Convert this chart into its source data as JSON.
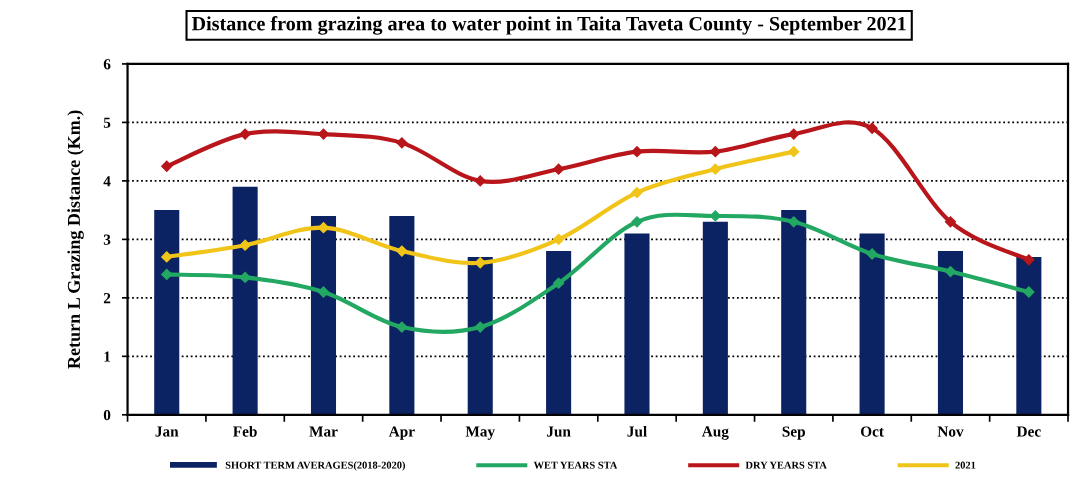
{
  "chart_data": {
    "type": "bar",
    "title": "Distance from grazing area to water point in Taita Taveta County - September 2021",
    "ylabel": "Return L Grazing Distance (Km.)",
    "categories": [
      "Jan",
      "Feb",
      "Mar",
      "Apr",
      "May",
      "Jun",
      "Jul",
      "Aug",
      "Sep",
      "Oct",
      "Nov",
      "Dec"
    ],
    "series": [
      {
        "name": "SHORT TERM AVERAGES(2018-2020)",
        "color": "#0b2263",
        "values": [
          3.5,
          3.9,
          3.4,
          3.4,
          2.7,
          2.8,
          3.1,
          3.3,
          3.5,
          3.1,
          2.8,
          2.7
        ]
      },
      {
        "name": "WET YEARS STA",
        "type": "line",
        "color": "#22a862",
        "values": [
          2.4,
          2.35,
          2.1,
          1.5,
          1.5,
          2.25,
          3.3,
          3.4,
          3.3,
          2.75,
          2.45,
          2.1
        ]
      },
      {
        "name": "DRY YEARS STA",
        "type": "line",
        "color": "#b8161b",
        "values": [
          4.25,
          4.8,
          4.8,
          4.65,
          4.0,
          4.2,
          4.5,
          4.5,
          4.8,
          4.9,
          3.3,
          2.65
        ]
      },
      {
        "name": "2021",
        "type": "line",
        "color": "#f0c419",
        "values": [
          2.7,
          2.9,
          3.2,
          2.8,
          2.6,
          3.0,
          3.8,
          4.2,
          4.5,
          null,
          null,
          null
        ]
      }
    ],
    "ylim": [
      0,
      6
    ],
    "yticks": [
      0,
      1,
      2,
      3,
      4,
      5,
      6
    ],
    "grid": "y",
    "legend": "bottom",
    "marker": "diamond",
    "line_style": "solid"
  }
}
